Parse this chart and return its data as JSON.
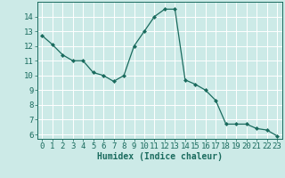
{
  "x": [
    0,
    1,
    2,
    3,
    4,
    5,
    6,
    7,
    8,
    9,
    10,
    11,
    12,
    13,
    14,
    15,
    16,
    17,
    18,
    19,
    20,
    21,
    22,
    23
  ],
  "y": [
    12.7,
    12.1,
    11.4,
    11.0,
    11.0,
    10.2,
    10.0,
    9.6,
    10.0,
    12.0,
    13.0,
    14.0,
    14.5,
    14.5,
    9.7,
    9.4,
    9.0,
    8.3,
    6.7,
    6.7,
    6.7,
    6.4,
    6.3,
    5.9
  ],
  "xlabel": "Humidex (Indice chaleur)",
  "ylim": [
    5.7,
    15.0
  ],
  "xlim": [
    -0.5,
    23.5
  ],
  "yticks": [
    6,
    7,
    8,
    9,
    10,
    11,
    12,
    13,
    14
  ],
  "xticks": [
    0,
    1,
    2,
    3,
    4,
    5,
    6,
    7,
    8,
    9,
    10,
    11,
    12,
    13,
    14,
    15,
    16,
    17,
    18,
    19,
    20,
    21,
    22,
    23
  ],
  "line_color": "#1a6b5e",
  "marker": "D",
  "marker_size": 2.0,
  "bg_color": "#cceae7",
  "grid_color": "#ffffff",
  "tick_color": "#1a6b5e",
  "label_color": "#1a6b5e",
  "font_size": 6.5,
  "xlabel_fontsize": 7.0
}
